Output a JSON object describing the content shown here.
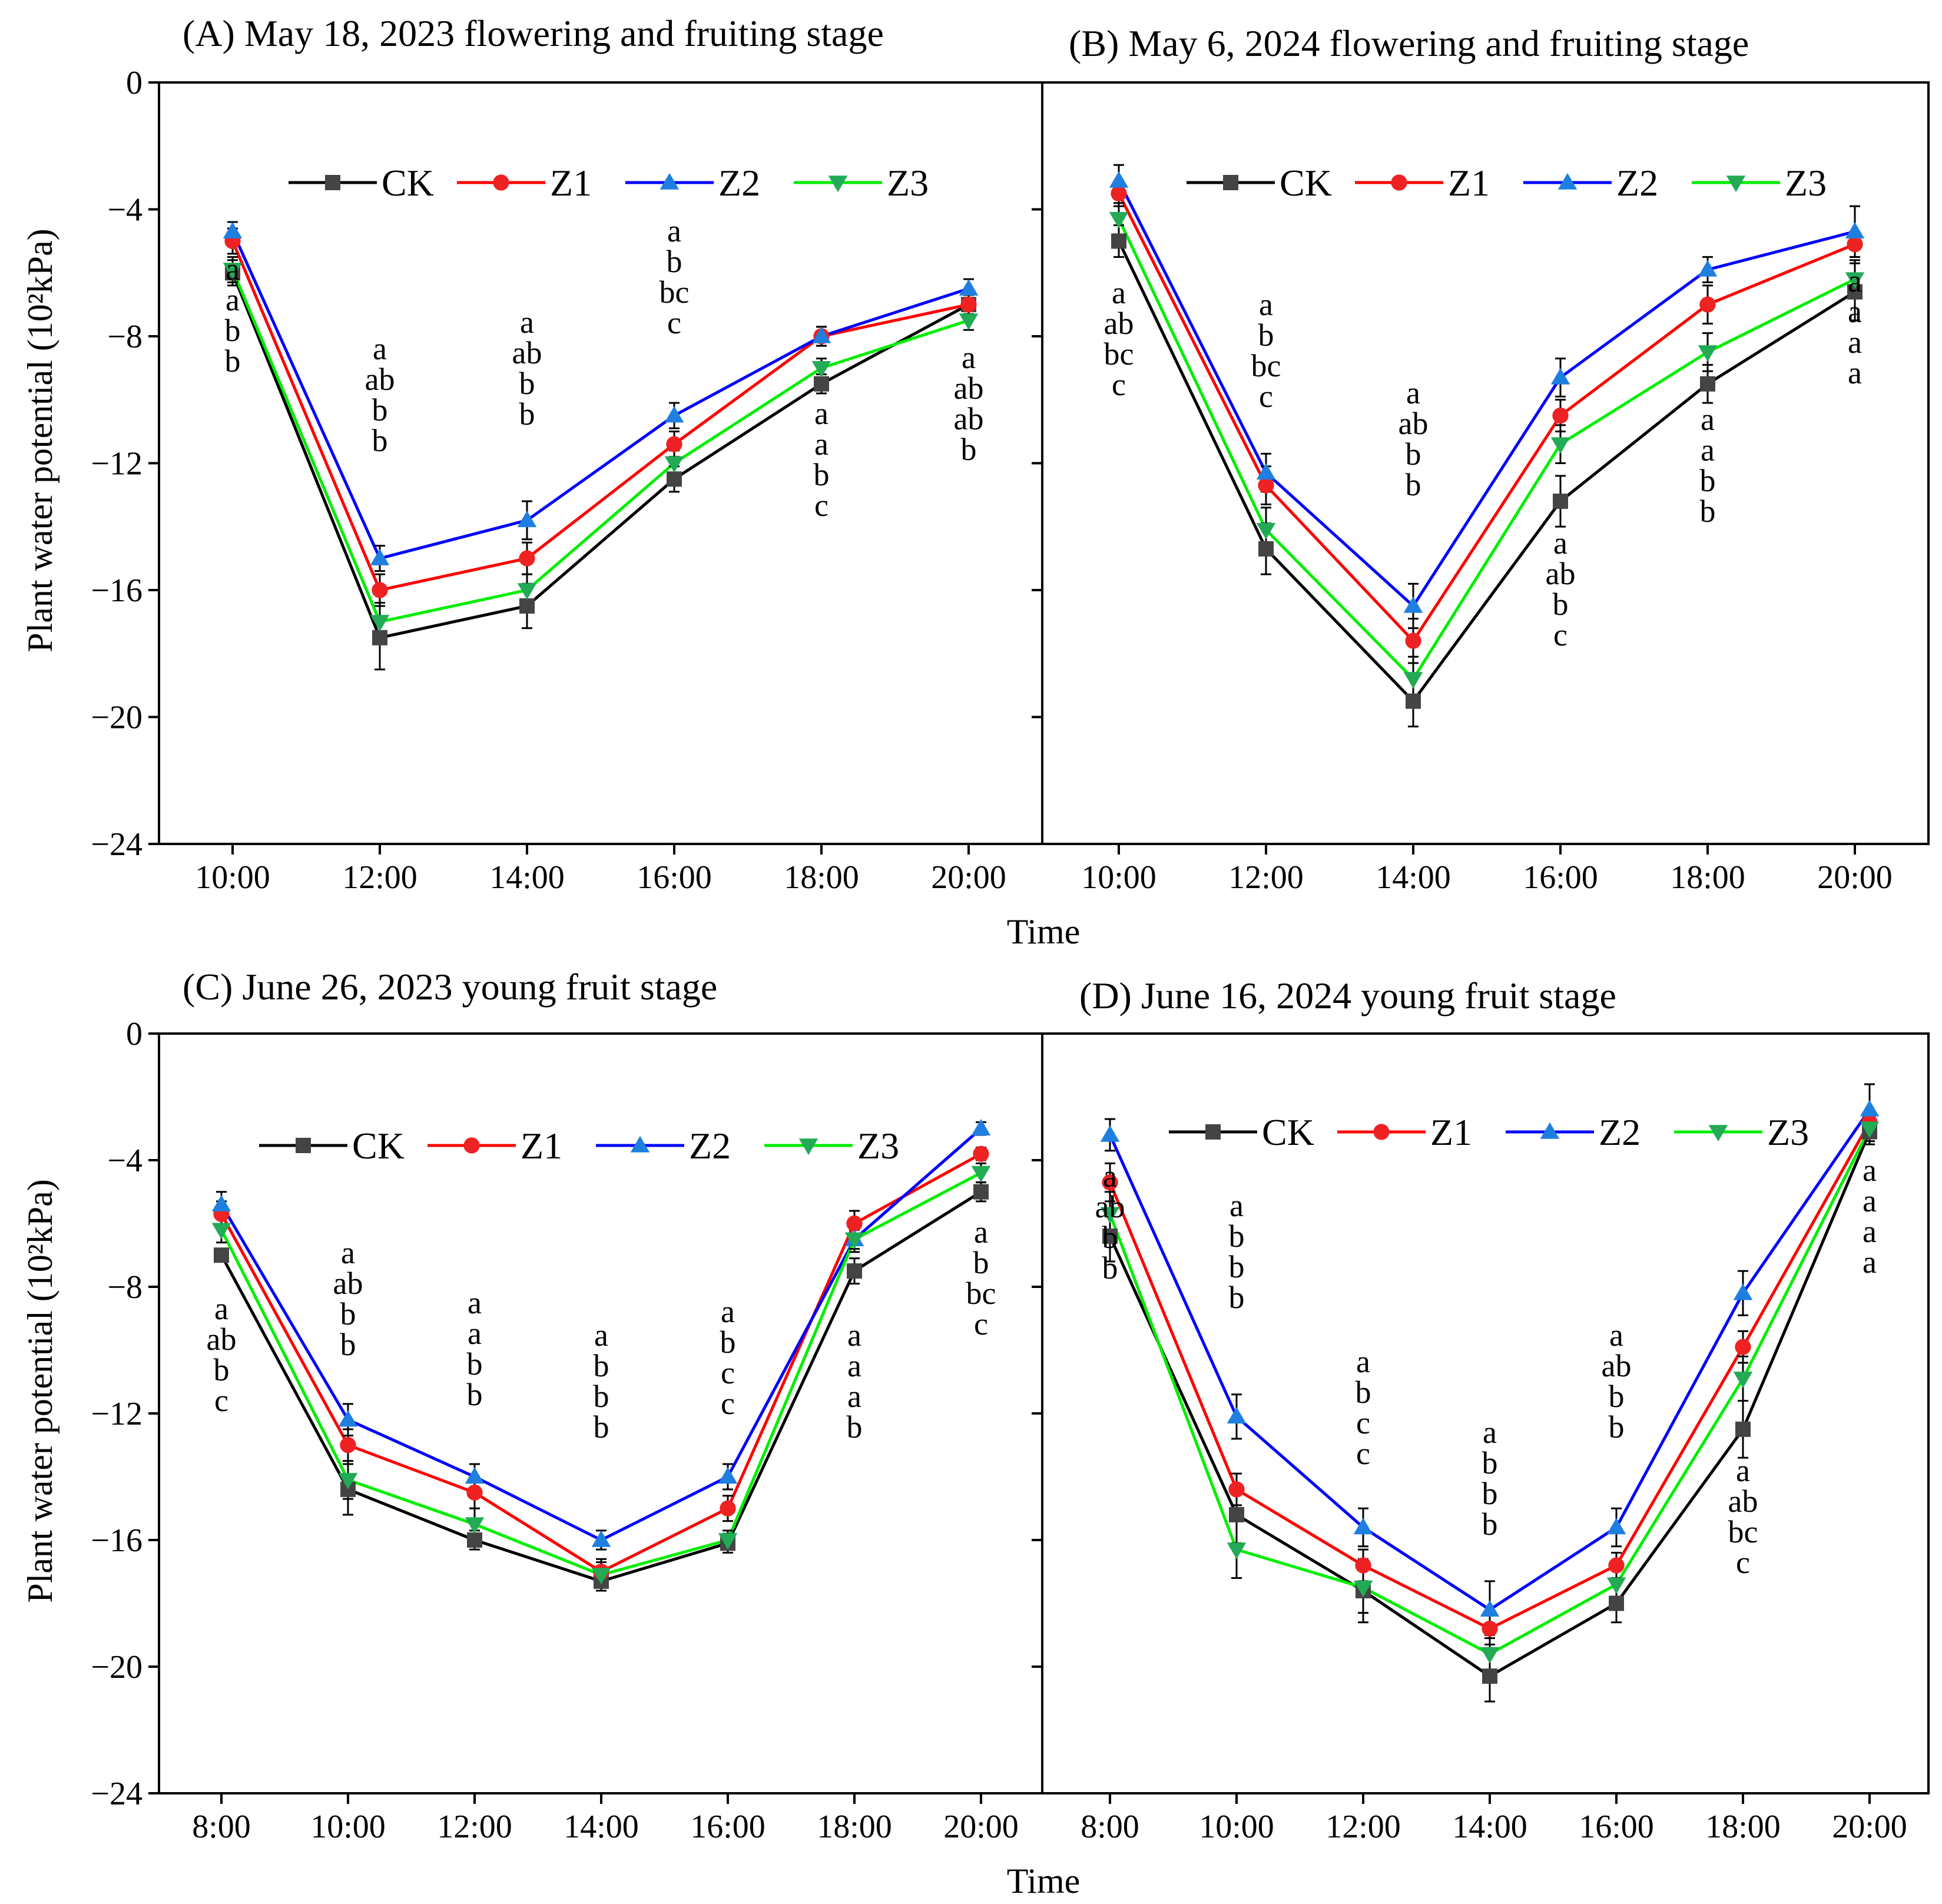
{
  "figure": {
    "y_axis_label": "Plant water potential (10²kPa)",
    "x_axis_label": "Time"
  },
  "legend": [
    "CK",
    "Z1",
    "Z2",
    "Z3"
  ],
  "colors": {
    "CK": "#000000",
    "Z1": "#ff0000",
    "Z2": "#0000ff",
    "Z3": "#00ee00",
    "CK_marker": "#444444",
    "Z1_marker": "#ee2222",
    "Z2_marker": "#1e7fe0",
    "Z3_marker": "#22aa55"
  },
  "chart_data": [
    {
      "type": "line",
      "title": "(A) May 18, 2023  flowering and fruiting stage",
      "xlabel": "Time",
      "ylabel": "Plant water potential (10²kPa)",
      "ylim": [
        -24,
        0
      ],
      "yticks": [
        "0",
        "−4",
        "−8",
        "−12",
        "−16",
        "−20",
        "−24"
      ],
      "categories": [
        "10:00",
        "12:00",
        "14:00",
        "16:00",
        "18:00",
        "20:00"
      ],
      "series": [
        {
          "name": "CK",
          "values": [
            -6.0,
            -17.5,
            -16.5,
            -12.5,
            -9.5,
            -7.0
          ],
          "err": [
            0.4,
            1.0,
            0.7,
            0.4,
            0.3,
            0.3
          ]
        },
        {
          "name": "Z1",
          "values": [
            -5.0,
            -16.0,
            -15.0,
            -11.4,
            -8.0,
            -7.0
          ],
          "err": [
            0.4,
            0.5,
            0.5,
            0.4,
            0.3,
            0.2
          ]
        },
        {
          "name": "Z2",
          "values": [
            -4.7,
            -15.0,
            -13.8,
            -10.5,
            -8.0,
            -6.5
          ],
          "err": [
            0.3,
            0.4,
            0.6,
            0.4,
            0.3,
            0.3
          ]
        },
        {
          "name": "Z3",
          "values": [
            -5.9,
            -17.0,
            -16.0,
            -12.0,
            -9.0,
            -7.5
          ],
          "err": [
            0.4,
            0.6,
            0.5,
            0.4,
            0.3,
            0.3
          ]
        }
      ],
      "significance": [
        [
          "a",
          "a",
          "b",
          "b"
        ],
        [
          "a",
          "ab",
          "b",
          "b"
        ],
        [
          "a",
          "ab",
          "b",
          "b"
        ],
        [
          "a",
          "b",
          "bc",
          "c"
        ],
        [
          "a",
          "a",
          "b",
          "c"
        ],
        [
          "a",
          "ab",
          "ab",
          "b"
        ]
      ]
    },
    {
      "type": "line",
      "title": "(B) May 6, 2024  flowering and fruiting stage",
      "xlabel": "Time",
      "ylim": [
        -24,
        0
      ],
      "categories": [
        "10:00",
        "12:00",
        "14:00",
        "16:00",
        "18:00",
        "20:00"
      ],
      "series": [
        {
          "name": "CK",
          "values": [
            -5.0,
            -14.7,
            -19.5,
            -13.2,
            -9.5,
            -6.6
          ],
          "err": [
            0.5,
            0.8,
            0.8,
            0.8,
            0.6,
            0.9
          ]
        },
        {
          "name": "Z1",
          "values": [
            -3.5,
            -12.7,
            -17.6,
            -10.5,
            -7.0,
            -5.1
          ],
          "err": [
            0.4,
            0.6,
            0.7,
            0.5,
            0.6,
            0.4
          ]
        },
        {
          "name": "Z2",
          "values": [
            -3.1,
            -12.3,
            -16.5,
            -9.3,
            -5.9,
            -4.7
          ],
          "err": [
            0.5,
            0.6,
            0.7,
            0.6,
            0.4,
            0.8
          ]
        },
        {
          "name": "Z3",
          "values": [
            -4.3,
            -14.1,
            -18.8,
            -11.4,
            -8.5,
            -6.2
          ],
          "err": [
            0.5,
            0.7,
            0.7,
            0.6,
            0.6,
            0.6
          ]
        }
      ],
      "significance": [
        [
          "a",
          "ab",
          "bc",
          "c"
        ],
        [
          "a",
          "b",
          "bc",
          "c"
        ],
        [
          "a",
          "ab",
          "b",
          "b"
        ],
        [
          "a",
          "ab",
          "b",
          "c"
        ],
        [
          "a",
          "a",
          "b",
          "b"
        ],
        [
          "a",
          "a",
          "a",
          "a"
        ]
      ]
    },
    {
      "type": "line",
      "title": "(C) June 26, 2023  young fruit stage",
      "xlabel": "Time",
      "ylabel": "Plant water potential (10²kPa)",
      "ylim": [
        -24,
        0
      ],
      "yticks": [
        "0",
        "−4",
        "−8",
        "−12",
        "−16",
        "−20",
        "−24"
      ],
      "categories": [
        "8:00",
        "10:00",
        "12:00",
        "14:00",
        "16:00",
        "18:00",
        "20:00"
      ],
      "series": [
        {
          "name": "CK",
          "values": [
            -7.0,
            -14.4,
            -16.0,
            -17.3,
            -16.1,
            -7.5,
            -5.0
          ],
          "err": [
            0.2,
            0.8,
            0.3,
            0.3,
            0.3,
            0.4,
            0.3
          ]
        },
        {
          "name": "Z1",
          "values": [
            -5.7,
            -13.0,
            -14.5,
            -17.0,
            -15.0,
            -6.0,
            -3.8
          ],
          "err": [
            0.4,
            0.5,
            0.5,
            0.4,
            0.4,
            0.4,
            0.2
          ]
        },
        {
          "name": "Z2",
          "values": [
            -5.4,
            -12.2,
            -14.0,
            -16.0,
            -14.0,
            -6.5,
            -3.0
          ],
          "err": [
            0.4,
            0.5,
            0.4,
            0.3,
            0.4,
            0.3,
            0.2
          ]
        },
        {
          "name": "Z3",
          "values": [
            -6.2,
            -14.1,
            -15.5,
            -17.1,
            -16.0,
            -6.5,
            -4.4
          ],
          "err": [
            0.4,
            0.6,
            0.5,
            0.4,
            0.3,
            0.4,
            0.3
          ]
        }
      ],
      "significance": [
        [
          "a",
          "ab",
          "b",
          "c"
        ],
        [
          "a",
          "ab",
          "b",
          "b"
        ],
        [
          "a",
          "a",
          "b",
          "b"
        ],
        [
          "a",
          "b",
          "b",
          "b"
        ],
        [
          "a",
          "b",
          "c",
          "c"
        ],
        [
          "a",
          "a",
          "a",
          "b"
        ],
        [
          "a",
          "b",
          "bc",
          "c"
        ]
      ]
    },
    {
      "type": "line",
      "title": "(D) June 16, 2024  young fruit stage",
      "xlabel": "Time",
      "ylim": [
        -24,
        0
      ],
      "categories": [
        "8:00",
        "10:00",
        "12:00",
        "14:00",
        "16:00",
        "18:00",
        "20:00"
      ],
      "series": [
        {
          "name": "CK",
          "values": [
            -6.4,
            -15.2,
            -17.6,
            -20.3,
            -18.0,
            -12.5,
            -3.1
          ],
          "err": [
            0.8,
            0.9,
            1.0,
            0.8,
            0.6,
            0.9,
            0.4
          ]
        },
        {
          "name": "Z1",
          "values": [
            -4.7,
            -14.4,
            -16.8,
            -18.8,
            -16.8,
            -9.9,
            -2.8
          ],
          "err": [
            0.6,
            0.5,
            0.5,
            0.5,
            0.4,
            0.5,
            0.3
          ]
        },
        {
          "name": "Z2",
          "values": [
            -3.2,
            -12.1,
            -15.6,
            -18.2,
            -15.6,
            -8.2,
            -2.4
          ],
          "err": [
            0.5,
            0.7,
            0.6,
            0.9,
            0.6,
            0.7,
            0.8
          ]
        },
        {
          "name": "Z3",
          "values": [
            -5.7,
            -16.3,
            -17.5,
            -19.6,
            -17.4,
            -10.9,
            -3.0
          ],
          "err": [
            0.7,
            0.9,
            0.8,
            0.6,
            0.5,
            0.7,
            0.4
          ]
        }
      ],
      "significance": [
        [
          "a",
          "ab",
          "b",
          "b"
        ],
        [
          "a",
          "b",
          "b",
          "b"
        ],
        [
          "a",
          "b",
          "c",
          "c"
        ],
        [
          "a",
          "b",
          "b",
          "b"
        ],
        [
          "a",
          "ab",
          "b",
          "b"
        ],
        [
          "a",
          "ab",
          "bc",
          "c"
        ],
        [
          "a",
          "a",
          "a",
          "a"
        ]
      ]
    }
  ]
}
